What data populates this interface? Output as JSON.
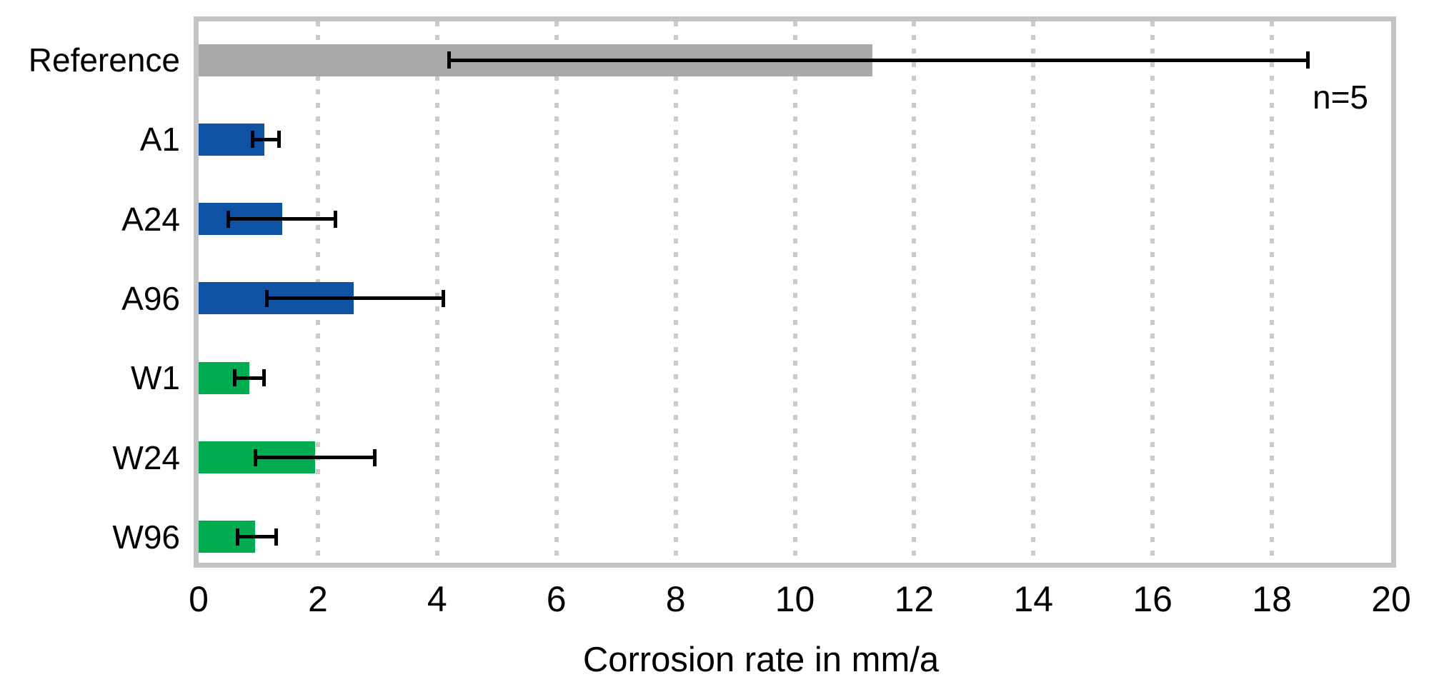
{
  "chart_data": {
    "type": "bar",
    "orientation": "horizontal",
    "title": "",
    "xlabel": "Corrosion rate in mm/a",
    "ylabel": "",
    "xlim": [
      0,
      20
    ],
    "xticks": [
      0,
      2,
      4,
      6,
      8,
      10,
      12,
      14,
      16,
      18,
      20
    ],
    "grid": "vertical-dotted",
    "gridline_values": [
      2,
      4,
      6,
      8,
      10,
      12,
      14,
      16,
      18
    ],
    "annotation": "n=5",
    "legend": "none",
    "categories": [
      "Reference",
      "A1",
      "A24",
      "A96",
      "W1",
      "W24",
      "W96"
    ],
    "values": [
      11.3,
      1.1,
      1.4,
      2.6,
      0.85,
      1.95,
      0.95
    ],
    "error_low": [
      4.2,
      0.9,
      0.5,
      1.15,
      0.6,
      0.95,
      0.65
    ],
    "error_high": [
      18.6,
      1.35,
      2.3,
      4.1,
      1.1,
      2.95,
      1.3
    ],
    "bar_colors": [
      "#a9a9a9",
      "#0f52a3",
      "#0f52a3",
      "#0f52a3",
      "#00ac4f",
      "#00ac4f",
      "#00ac4f"
    ],
    "colors": {
      "reference_gray": "#a9a9a9",
      "series_a_blue": "#0f52a3",
      "series_w_green": "#00ac4f",
      "frame_gray": "#c3c3c3",
      "gridline_gray": "#cbcbcb",
      "errorbar_black": "#000000"
    }
  }
}
